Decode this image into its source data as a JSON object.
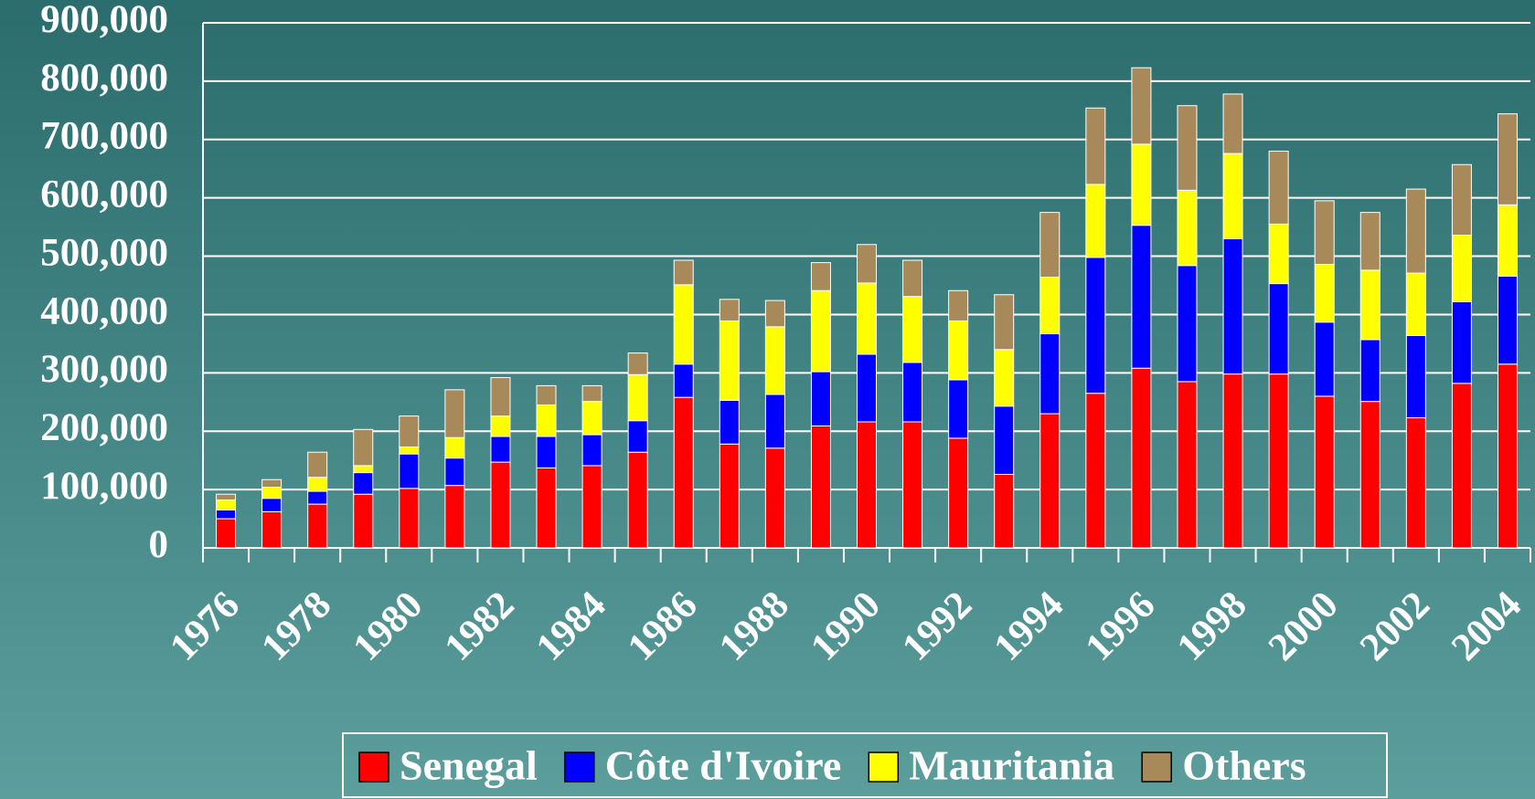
{
  "chart_data": {
    "type": "stacked_bar",
    "categories": [
      "1976",
      null,
      "1978",
      null,
      "1980",
      null,
      "1982",
      null,
      "1984",
      null,
      "1986",
      null,
      "1988",
      null,
      "1990",
      null,
      "1992",
      null,
      "1994",
      null,
      "1996",
      null,
      "1998",
      null,
      "2000",
      null,
      "2002",
      null,
      "2004"
    ],
    "series": [
      {
        "name": "Senegal",
        "color": "#ff0000",
        "values": [
          50000,
          62000,
          75000,
          92000,
          102000,
          107000,
          147000,
          137000,
          141000,
          164000,
          258000,
          178000,
          171000,
          209000,
          216000,
          216000,
          188000,
          126000,
          230000,
          265000,
          308000,
          285000,
          298000,
          298000,
          260000,
          251000,
          223000,
          282000,
          315000
        ]
      },
      {
        "name": "Côte d'Ivoire",
        "color": "#0000ff",
        "values": [
          15000,
          23000,
          22000,
          37000,
          59000,
          47000,
          44000,
          54000,
          53000,
          54000,
          57000,
          75000,
          92000,
          93000,
          116000,
          102000,
          100000,
          117000,
          137000,
          233000,
          245000,
          199000,
          232000,
          155000,
          127000,
          106000,
          141000,
          140000,
          151000
        ]
      },
      {
        "name": "Mauritania",
        "color": "#ffff00",
        "values": [
          17000,
          19000,
          24000,
          12000,
          12000,
          35000,
          35000,
          54000,
          57000,
          79000,
          136000,
          136000,
          116000,
          139000,
          122000,
          113000,
          101000,
          97000,
          97000,
          125000,
          139000,
          129000,
          146000,
          102000,
          99000,
          119000,
          107000,
          114000,
          122000
        ]
      },
      {
        "name": "Others",
        "color": "#a88a5a",
        "values": [
          10000,
          13000,
          43000,
          62000,
          53000,
          82000,
          66000,
          33000,
          27000,
          37000,
          42000,
          37000,
          45000,
          48000,
          66000,
          62000,
          52000,
          94000,
          111000,
          131000,
          131000,
          145000,
          102000,
          125000,
          109000,
          99000,
          144000,
          121000,
          156000
        ]
      }
    ],
    "ylim": [
      0,
      900000
    ],
    "yticks": [
      0,
      {
        "value": 100000,
        "label": "100,000"
      },
      {
        "value": 200000,
        "label": "200,000"
      },
      {
        "value": 300000,
        "label": "300,000"
      },
      {
        "value": 400000,
        "label": "400,000"
      },
      {
        "value": 500000,
        "label": "500,000"
      },
      {
        "value": 600000,
        "label": "600,000"
      },
      {
        "value": 700000,
        "label": "700,000"
      },
      {
        "value": 800000,
        "label": "800,000"
      },
      {
        "value": 900000,
        "label": "900,000"
      }
    ],
    "grid": true,
    "legend": "bottom"
  }
}
